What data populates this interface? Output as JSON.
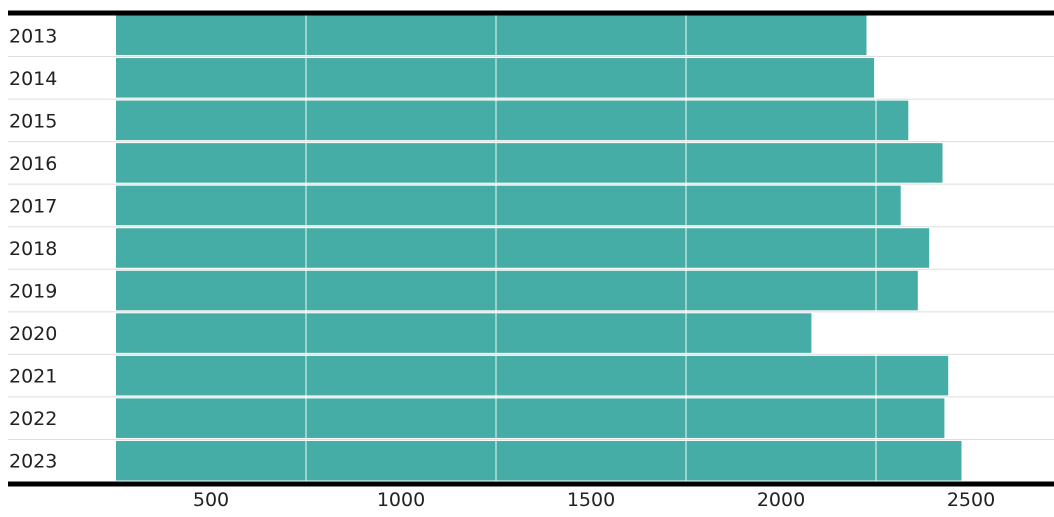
{
  "chart_data": {
    "type": "bar",
    "orientation": "horizontal",
    "categories": [
      "2013",
      "2014",
      "2015",
      "2016",
      "2017",
      "2018",
      "2019",
      "2020",
      "2021",
      "2022",
      "2023"
    ],
    "values": [
      2225,
      2245,
      2335,
      2425,
      2315,
      2390,
      2360,
      2080,
      2440,
      2430,
      2475
    ],
    "xlim": [
      250,
      2700
    ],
    "x_ticks": [
      500,
      1000,
      1500,
      2000,
      2500
    ],
    "grid": true,
    "legend": "none",
    "title": "",
    "xlabel": "",
    "ylabel": ""
  },
  "colors": {
    "bar": "#45ada6",
    "gridline": "#ffffff",
    "row_separator": "#dddddd",
    "axis": "#000000",
    "text": "#222222"
  }
}
